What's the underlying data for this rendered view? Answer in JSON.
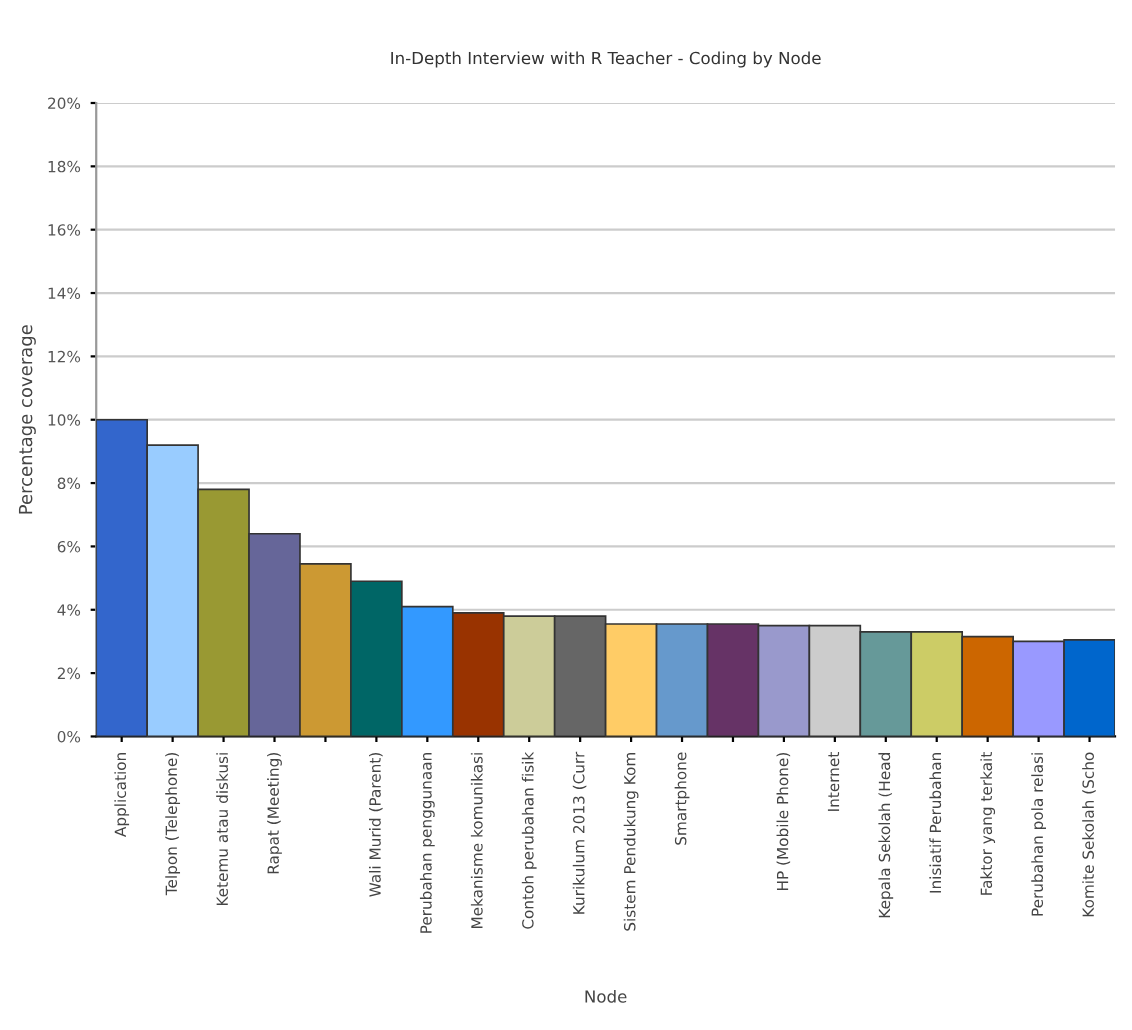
{
  "chart_data": {
    "type": "bar",
    "title": "In-Depth Interview with R Teacher - Coding by Node",
    "xlabel": "Node",
    "ylabel": "Percentage coverage",
    "categories": [
      "Application",
      "Telpon (Telephone)",
      "Ketemu atau diskusi",
      "Rapat (Meeting)",
      null,
      "Wali Murid (Parent)",
      "Perubahan penggunaan",
      "Mekanisme komunikasi",
      "Contoh perubahan fisik",
      "Kurikulum 2013 (Curr",
      "Sistem Pendukung Kom",
      "Smartphone",
      null,
      "HP (Mobile Phone)",
      "Internet",
      "Kepala Sekolah (Head",
      "Inisiatif Perubahan",
      "Faktor yang terkait",
      "Perubahan pola relasi",
      "Komite Sekolah (Scho"
    ],
    "values": [
      10.0,
      9.2,
      7.8,
      6.4,
      5.45,
      4.9,
      4.1,
      3.9,
      3.8,
      3.8,
      3.55,
      3.55,
      3.55,
      3.5,
      3.5,
      3.3,
      3.3,
      3.15,
      3.0,
      3.05
    ],
    "colors": [
      "#3366cc",
      "#99ccff",
      "#999933",
      "#666699",
      "#cc9933",
      "#006666",
      "#3399ff",
      "#993300",
      "#cccc99",
      "#666666",
      "#ffcc66",
      "#6699cc",
      "#663366",
      "#9999cc",
      "#cccccc",
      "#669999",
      "#cccc66",
      "#cc6600",
      "#9999ff",
      "#0066cc"
    ],
    "ylim": [
      0,
      20
    ],
    "yticks": [
      {
        "value": 0,
        "label": "0%"
      },
      {
        "value": 2,
        "label": "2%"
      },
      {
        "value": 4,
        "label": "4%"
      },
      {
        "value": 6,
        "label": "6%"
      },
      {
        "value": 8,
        "label": "8%"
      },
      {
        "value": 10,
        "label": "10%"
      },
      {
        "value": 12,
        "label": "12%"
      },
      {
        "value": 14,
        "label": "14%"
      },
      {
        "value": 16,
        "label": "16%"
      },
      {
        "value": 18,
        "label": "18%"
      },
      {
        "value": 20,
        "label": "20%"
      }
    ],
    "grid": "y",
    "legend": false
  }
}
